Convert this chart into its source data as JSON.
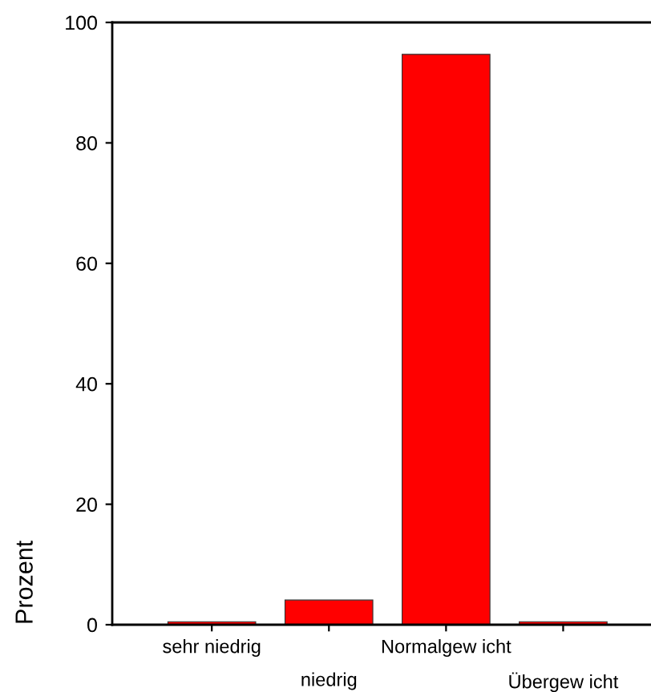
{
  "chart_data": {
    "type": "bar",
    "ylabel": "Prozent",
    "categories": [
      "sehr niedrig",
      "niedrig",
      "Normalgew icht",
      "Übergew icht"
    ],
    "values": [
      0.5,
      4.1,
      94.7,
      0.5
    ],
    "color": "#ff0000",
    "ylim": [
      0,
      100
    ],
    "yticks": [
      0,
      20,
      40,
      60,
      80,
      100
    ],
    "grid": false
  }
}
